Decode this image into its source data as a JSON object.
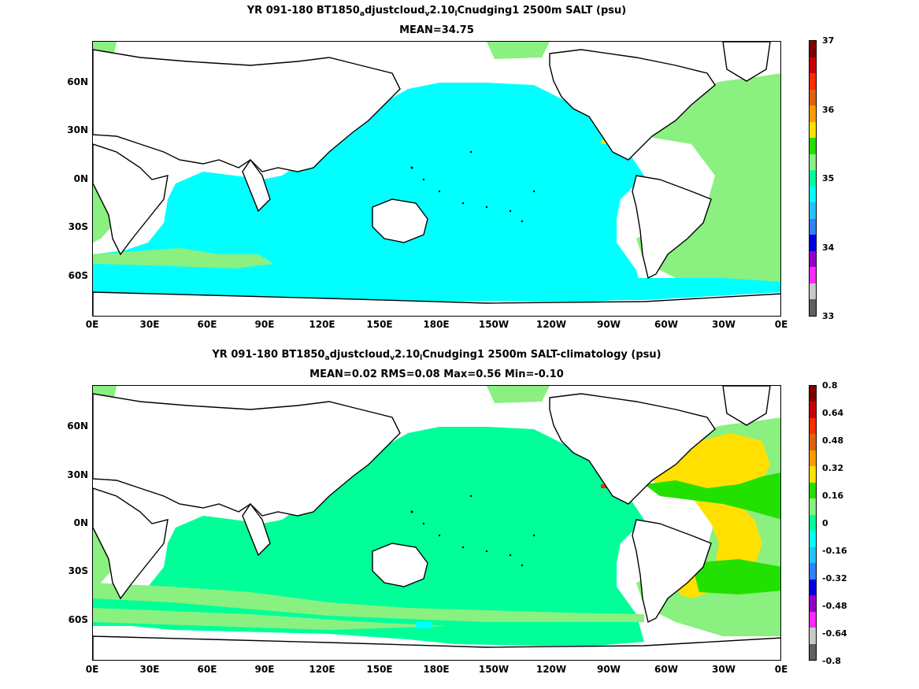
{
  "panels": [
    {
      "title_parts": {
        "a": "YR 091-180 BT1850",
        "b": "a",
        "c": "djustcloud",
        "d": "v",
        "e": "2.10",
        "f": "l",
        "g": "Cnudging1 2500m SALT (psu)"
      },
      "subtitle": "MEAN=34.75",
      "colorbar_labels": [
        "37",
        "36",
        "35",
        "34",
        "33"
      ],
      "colorbar_colors": [
        "#7f0000",
        "#c80000",
        "#ff2a00",
        "#e06010",
        "#ff9b00",
        "#ffe000",
        "#22e000",
        "#8af080",
        "#00ff99",
        "#00ffff",
        "#22c3ff",
        "#3280ff",
        "#0000e6",
        "#9600c8",
        "#ff28ff",
        "#c8c8c8",
        "#606060"
      ]
    },
    {
      "title_parts": {
        "a": "YR 091-180 BT1850",
        "b": "a",
        "c": "djustcloud",
        "d": "v",
        "e": "2.10",
        "f": "l",
        "g": "Cnudging1 2500m SALT-climatology (psu)"
      },
      "subtitle": "MEAN=0.02   RMS=0.08   Max=0.56   Min=-0.10",
      "colorbar_labels": [
        "0.8",
        "0.64",
        "0.48",
        "0.32",
        "0.16",
        "0",
        "-0.16",
        "-0.32",
        "-0.48",
        "-0.64",
        "-0.8"
      ],
      "colorbar_colors": [
        "#7f0000",
        "#c80000",
        "#ff2a00",
        "#e06010",
        "#ff9b00",
        "#ffe000",
        "#22e000",
        "#8af080",
        "#00ff99",
        "#00ffff",
        "#22c3ff",
        "#3280ff",
        "#0000e6",
        "#9600c8",
        "#ff28ff",
        "#c8c8c8",
        "#606060"
      ]
    }
  ],
  "lat_labels": [
    "60N",
    "30N",
    "0N",
    "30S",
    "60S"
  ],
  "lon_labels": [
    "0E",
    "30E",
    "60E",
    "90E",
    "120E",
    "150E",
    "180E",
    "150W",
    "120W",
    "90W",
    "60W",
    "30W",
    "0E"
  ],
  "fill_colors": {
    "cyan": "#00ffff",
    "light_green": "#8af080",
    "green": "#22e000",
    "sea_green": "#00ff99",
    "yellow": "#ffe000",
    "orange": "#ff9b00",
    "red": "#ff2a00"
  }
}
